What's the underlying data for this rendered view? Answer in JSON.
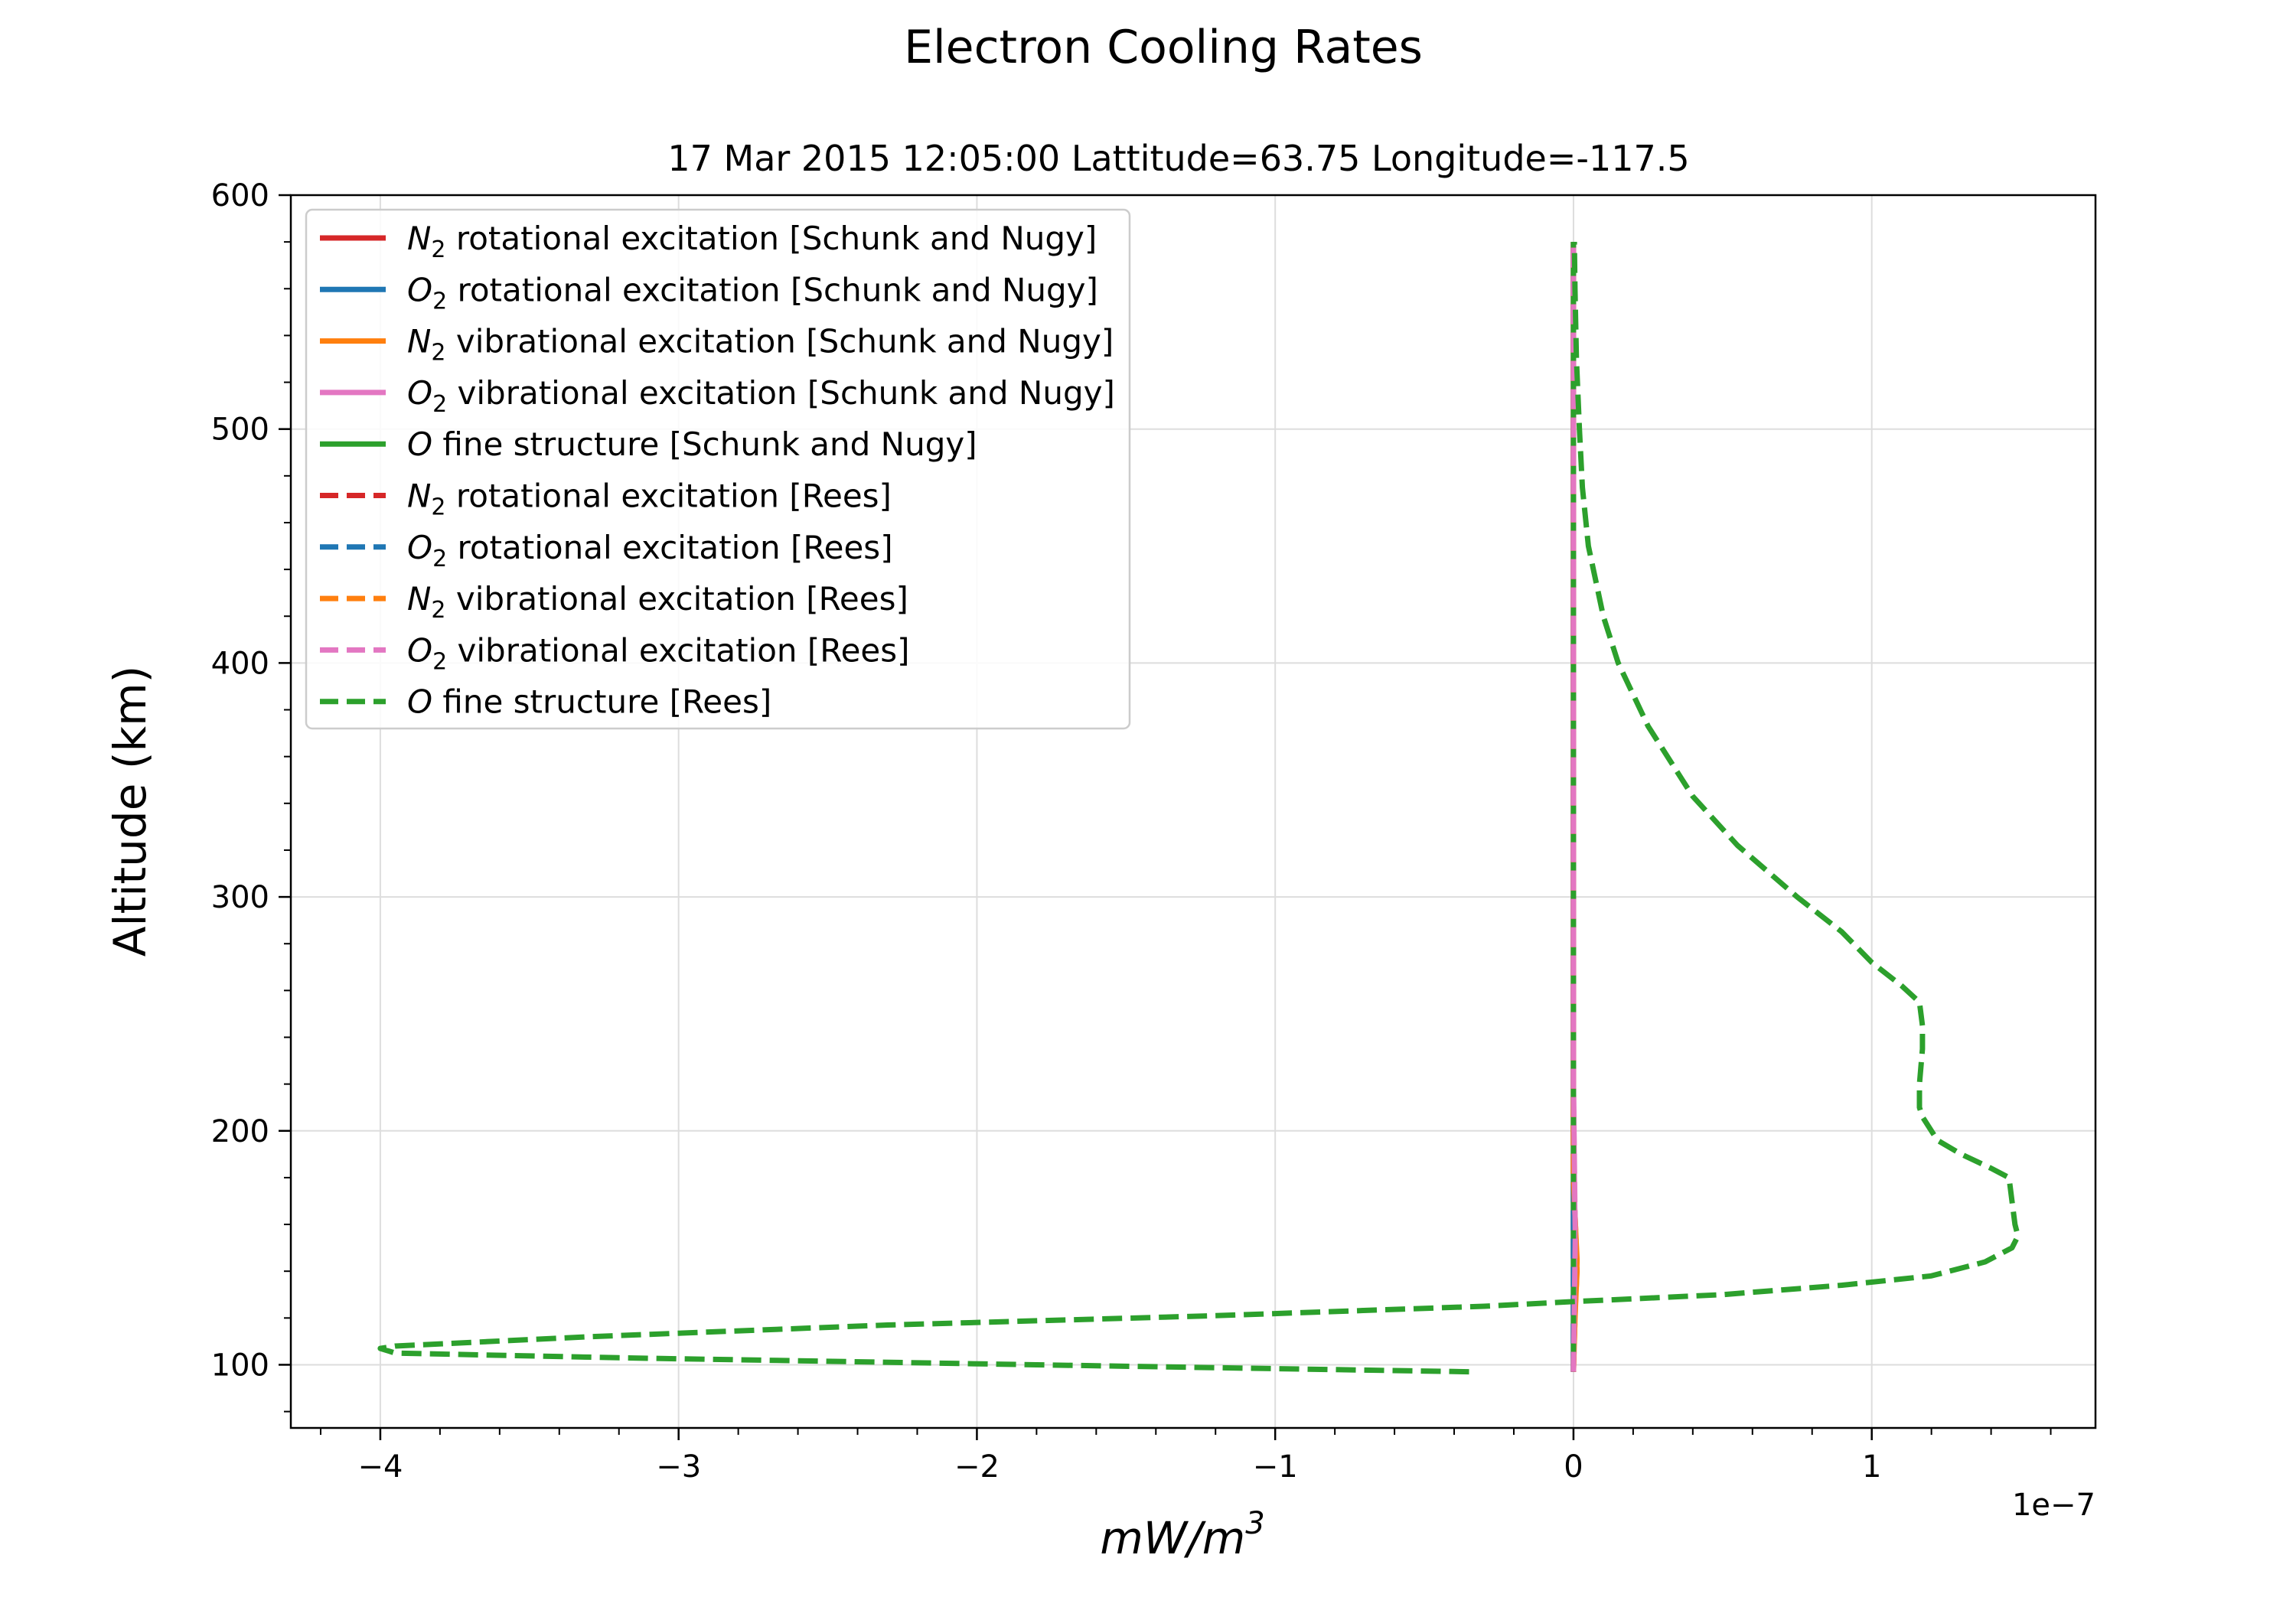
{
  "chart_data": {
    "type": "line",
    "title": "Electron Cooling Rates",
    "subtitle": "17 Mar 2015 12:05:00 Lattitude=63.75 Longitude=-117.5",
    "xlabel": "mW/m",
    "xlabel_sup": "3",
    "ylabel": "Altitude (km)",
    "x_offset_label": "1e−7",
    "x_scale": 1e-07,
    "xlim": [
      -4.3,
      1.75
    ],
    "ylim": [
      73,
      600
    ],
    "x_ticks": [
      -4,
      -3,
      -2,
      -1,
      0,
      1
    ],
    "x_tick_labels": [
      "−4",
      "−3",
      "−2",
      "−1",
      "0",
      "1"
    ],
    "y_ticks": [
      100,
      200,
      300,
      400,
      500,
      600
    ],
    "y_tick_labels": [
      "100",
      "200",
      "300",
      "400",
      "500",
      "600"
    ],
    "grid": true,
    "legend_position": "upper-left",
    "series": [
      {
        "name": "rotational excitation [Schunk and Nugy]",
        "mol": "N",
        "sub": "2",
        "color": "#d62728",
        "dash": "solid",
        "x": [
          0,
          0,
          0,
          0,
          0
        ],
        "y": [
          97,
          200,
          300,
          450,
          580
        ]
      },
      {
        "name": "rotational excitation [Schunk and Nugy]",
        "mol": "O",
        "sub": "2",
        "color": "#1f77b4",
        "dash": "solid",
        "x": [
          0,
          0,
          0,
          0,
          0
        ],
        "y": [
          97,
          200,
          300,
          450,
          580
        ]
      },
      {
        "name": "vibrational excitation [Schunk and Nugy]",
        "mol": "N",
        "sub": "2",
        "color": "#ff7f0e",
        "dash": "solid",
        "x": [
          0,
          0.005,
          0.01,
          0.012,
          0.008,
          0.003,
          0,
          0
        ],
        "y": [
          97,
          120,
          135,
          145,
          155,
          170,
          200,
          580
        ]
      },
      {
        "name": "vibrational excitation [Schunk and Nugy]",
        "mol": "O",
        "sub": "2",
        "color": "#e377c2",
        "dash": "solid",
        "x": [
          0,
          0.003,
          0.005,
          0.003,
          0,
          0
        ],
        "y": [
          97,
          140,
          160,
          180,
          220,
          580
        ]
      },
      {
        "name": "fine structure [Schunk and Nugy]",
        "mol": "O",
        "sub": "",
        "color": "#2ca02c",
        "dash": "solid",
        "x": [
          0,
          0,
          0,
          0
        ],
        "y": [
          97,
          300,
          500,
          580
        ]
      },
      {
        "name": "rotational excitation [Rees]",
        "mol": "N",
        "sub": "2",
        "color": "#d62728",
        "dash": "dashed",
        "x": [
          0,
          0,
          0,
          0
        ],
        "y": [
          97,
          200,
          400,
          580
        ]
      },
      {
        "name": "rotational excitation [Rees]",
        "mol": "O",
        "sub": "2",
        "color": "#1f77b4",
        "dash": "dashed",
        "x": [
          0,
          0,
          0,
          0
        ],
        "y": [
          97,
          200,
          400,
          580
        ]
      },
      {
        "name": "vibrational excitation [Rees]",
        "mol": "N",
        "sub": "2",
        "color": "#ff7f0e",
        "dash": "dashed",
        "x": [
          0,
          0.006,
          0.012,
          0.008,
          0,
          0
        ],
        "y": [
          97,
          125,
          140,
          155,
          180,
          580
        ]
      },
      {
        "name": "vibrational excitation [Rees]",
        "mol": "O",
        "sub": "2",
        "color": "#e377c2",
        "dash": "dashed",
        "x": [
          0,
          0.004,
          0.006,
          0.004,
          0,
          0
        ],
        "y": [
          97,
          135,
          155,
          175,
          220,
          580
        ]
      },
      {
        "name": "fine structure [Rees]",
        "mol": "O",
        "sub": "",
        "color": "#2ca02c",
        "dash": "dashed",
        "x": [
          -0.35,
          -1.8,
          -3.2,
          -3.95,
          -4.0,
          -3.95,
          -3.3,
          -2.3,
          -1.2,
          -0.3,
          0.0,
          0.5,
          0.9,
          1.2,
          1.38,
          1.47,
          1.49,
          1.48,
          1.47,
          1.46,
          1.4,
          1.3,
          1.22,
          1.2,
          1.17,
          1.16,
          1.16,
          1.17,
          1.17,
          1.16,
          1.1,
          1.0,
          0.9,
          0.75,
          0.55,
          0.4,
          0.25,
          0.15,
          0.1,
          0.05,
          0.03,
          0.02,
          0.01,
          0.005,
          0.003
        ],
        "y": [
          97,
          100,
          103,
          105,
          107,
          108,
          112,
          117,
          121,
          125,
          127,
          130,
          134,
          138,
          144,
          150,
          155,
          160,
          170,
          180,
          184,
          190,
          196,
          200,
          206,
          210,
          220,
          235,
          245,
          255,
          262,
          272,
          285,
          300,
          322,
          343,
          373,
          400,
          420,
          450,
          475,
          500,
          530,
          560,
          580
        ]
      }
    ]
  }
}
